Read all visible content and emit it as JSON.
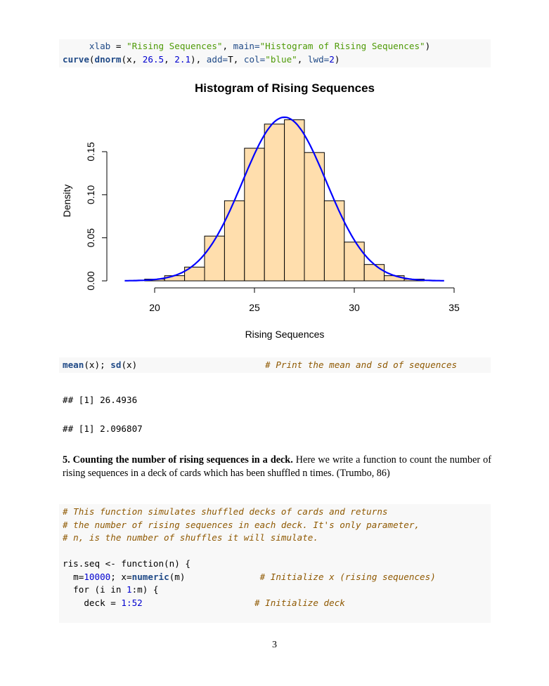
{
  "code_block_1": [
    [
      {
        "t": "     "
      },
      {
        "t": "xlab",
        "c": "ar"
      },
      {
        "t": " = "
      },
      {
        "t": "\"Rising Sequences\"",
        "c": "st"
      },
      {
        "t": ", "
      },
      {
        "t": "main=",
        "c": "ar"
      },
      {
        "t": "\"Histogram of Rising Sequences\"",
        "c": "st"
      },
      {
        "t": ")"
      }
    ],
    [
      {
        "t": "curve",
        "c": "fn"
      },
      {
        "t": "("
      },
      {
        "t": "dnorm",
        "c": "fn"
      },
      {
        "t": "(x, "
      },
      {
        "t": "26.5",
        "c": "dv"
      },
      {
        "t": ", "
      },
      {
        "t": "2.1",
        "c": "dv"
      },
      {
        "t": "), "
      },
      {
        "t": "add=",
        "c": "ar"
      },
      {
        "t": "T, "
      },
      {
        "t": "col=",
        "c": "ar"
      },
      {
        "t": "\"blue\"",
        "c": "st"
      },
      {
        "t": ", "
      },
      {
        "t": "lwd=",
        "c": "ar"
      },
      {
        "t": "2",
        "c": "dv"
      },
      {
        "t": ")"
      }
    ]
  ],
  "chart_data": {
    "type": "bar",
    "title": "Histogram of Rising Sequences",
    "xlabel": "Rising Sequences",
    "ylabel": "Density",
    "xlim": [
      18.5,
      35
    ],
    "ylim": [
      0,
      0.19
    ],
    "x_ticks": [
      "20",
      "25",
      "30",
      "35"
    ],
    "y_ticks": [
      "0.00",
      "0.05",
      "0.10",
      "0.15"
    ],
    "bin_breaks": [
      19.5,
      20.5,
      21.5,
      22.5,
      23.5,
      24.5,
      25.5,
      26.5,
      27.5,
      28.5,
      29.5,
      30.5,
      31.5,
      32.5,
      33.5
    ],
    "values": [
      0.002,
      0.006,
      0.016,
      0.052,
      0.093,
      0.154,
      0.182,
      0.187,
      0.149,
      0.093,
      0.045,
      0.019,
      0.006,
      0.002
    ],
    "bar_fill": "#ffdead",
    "curve": {
      "type": "normal density",
      "mean": 26.5,
      "sd": 2.1,
      "from": 18.5,
      "to": 34.5,
      "color": "#0000ff"
    },
    "grid": false
  },
  "code_block_2": [
    [
      {
        "t": "mean",
        "c": "fn"
      },
      {
        "t": "(x); "
      },
      {
        "t": "sd",
        "c": "fn"
      },
      {
        "t": "(x)                        "
      },
      {
        "t": "# Print the mean and sd of sequences",
        "c": "co"
      }
    ]
  ],
  "output_1": "## [1] 26.4936",
  "output_2": "## [1] 2.096807",
  "section": {
    "heading": "5. Counting the number of rising sequences in a deck.",
    "body": " Here we write a function to count the number of rising sequences in a deck of cards which has been shuffled n times. (Trumbo, 86)"
  },
  "code_block_3": [
    [
      {
        "t": "# This function simulates shuffled decks of cards and returns",
        "c": "co"
      }
    ],
    [
      {
        "t": "# the number of rising sequences in each deck. It's only parameter,",
        "c": "co"
      }
    ],
    [
      {
        "t": "# n, is the number of shuffles it will simulate.",
        "c": "co"
      }
    ],
    [
      {
        "t": ""
      }
    ],
    [
      {
        "t": "ris.seq <- function(n) {"
      }
    ],
    [
      {
        "t": "  m="
      },
      {
        "t": "10000",
        "c": "dv"
      },
      {
        "t": "; x="
      },
      {
        "t": "numeric",
        "c": "fn"
      },
      {
        "t": "(m)              "
      },
      {
        "t": "# Initialize x (rising sequences)",
        "c": "co"
      }
    ],
    [
      {
        "t": "  for (i in "
      },
      {
        "t": "1",
        "c": "dv"
      },
      {
        "t": ":m) {"
      }
    ],
    [
      {
        "t": "    deck = "
      },
      {
        "t": "1:52",
        "c": "dv"
      },
      {
        "t": "                     "
      },
      {
        "t": "# Initialize deck",
        "c": "co"
      }
    ]
  ],
  "page_number": "3"
}
